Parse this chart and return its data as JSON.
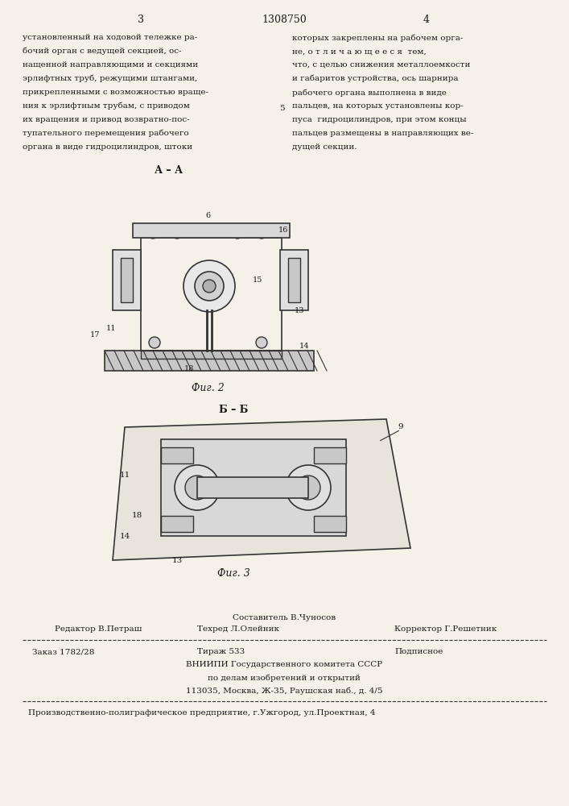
{
  "bg_color": "#f5f0e8",
  "page_width": 7.07,
  "page_height": 10.0,
  "header": {
    "page_num_left": "3",
    "patent_num": "1308750",
    "page_num_right": "4"
  },
  "left_text": "установленный на ходовой тележке ра-\nбочий орган с ведущей секцией, ос-\nнащенной направляющими и секциями\nэрлифтных труб, режущими штангами,\nприкрепленными с возможностью враще-\nния к эрлифтным трубам, с приводом\nих вращения и привод возвратно-пос-\nтупательного перемещения рабочего\nоргана в виде гидроцилиндров, штоки",
  "right_text": "которых закреплены на рабочем орга-\nне, о т л и ч а ю щ е е с я  тем,\nчто, с целью снижения металлоемкости\nи габаритов устройства, ось шарнира\nрабочего органа выполнена в виде\nпальцев, на которых установлены кор-\nпуса  гидроцилиндров, при этом концы\nпальцев размещены в направляющих ве-\nдущей секции.",
  "fig2_label": "Фиг. 2",
  "fig2_section": "А – А",
  "fig3_label": "Фиг. 3",
  "fig3_section": "Б – Б",
  "footer_composer": "Составитель В.Чуносов",
  "footer_editor": "Редактор В.Петраш",
  "footer_tech": "Техред Л.Олейник",
  "footer_corrector": "Корректор Г.Решетник",
  "footer_order": "Заказ 1782/28",
  "footer_circulation": "Тираж 533",
  "footer_subscription": "Подписное",
  "footer_vnipi": "ВНИИПИ Государственного комитета СССР",
  "footer_affairs": "по делам изобретений и открытий",
  "footer_address": "113035, Москва, Ж-35, Раушская наб., д. 4/5",
  "footer_production": "Производственно-полиграфическое предприятие, г.Ужгород, ул.Проектная, 4",
  "text_color": "#1a1a1a",
  "line_color": "#333333"
}
